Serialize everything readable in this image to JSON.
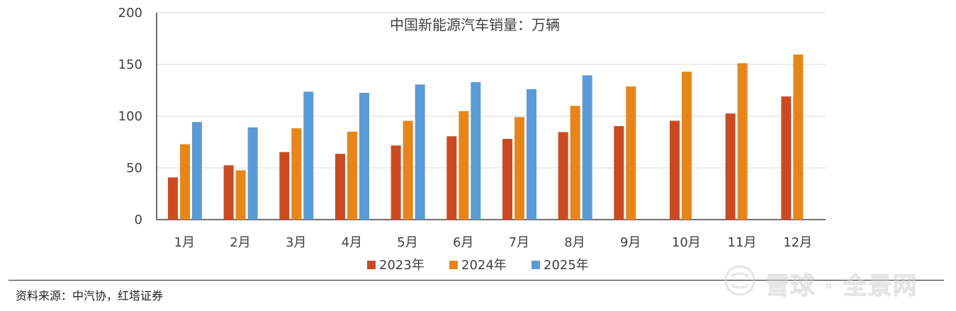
{
  "chart_data": {
    "type": "bar",
    "title": "中国新能源汽车销量：万辆",
    "categories": [
      "1月",
      "2月",
      "3月",
      "4月",
      "5月",
      "6月",
      "7月",
      "8月",
      "9月",
      "10月",
      "11月",
      "12月"
    ],
    "series": [
      {
        "name": "2023年",
        "color": "#cc4a21",
        "values": [
          40.8,
          52.5,
          65.3,
          63.6,
          71.7,
          80.6,
          78.0,
          84.6,
          90.4,
          95.6,
          102.6,
          119.1
        ]
      },
      {
        "name": "2024年",
        "color": "#e6861a",
        "values": [
          72.9,
          47.7,
          88.3,
          85.0,
          95.5,
          104.9,
          99.1,
          110.0,
          128.7,
          143.0,
          151.2,
          159.6
        ]
      },
      {
        "name": "2025年",
        "color": "#5b9bd5",
        "values": [
          94.4,
          89.2,
          123.7,
          122.6,
          130.7,
          132.9,
          126.2,
          139.5,
          null,
          null,
          null,
          null
        ]
      }
    ],
    "yticks": [
      "0",
      "50",
      "100",
      "150",
      "200"
    ],
    "ylim": [
      0,
      200
    ],
    "grid": true,
    "legend": "bottom"
  },
  "footer": {
    "source": "资料来源：中汽协，红塔证券"
  },
  "watermark": {
    "text": "雪球 · 全景网",
    "icon": "snowball-logo-icon"
  }
}
